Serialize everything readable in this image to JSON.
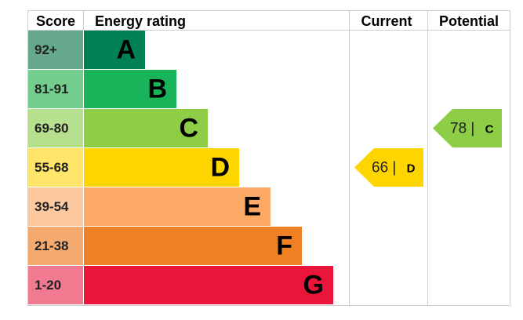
{
  "chart_data": {
    "type": "bar",
    "headers": {
      "score": "Score",
      "rating": "Energy rating",
      "current": "Current",
      "potential": "Potential"
    },
    "bands": [
      {
        "letter": "A",
        "range": "92+",
        "bar_color": "#008054",
        "score_color": "#66a88c"
      },
      {
        "letter": "B",
        "range": "81-91",
        "bar_color": "#19b459",
        "score_color": "#73cd8d"
      },
      {
        "letter": "C",
        "range": "69-80",
        "bar_color": "#8dce46",
        "score_color": "#b7e08e"
      },
      {
        "letter": "D",
        "range": "55-68",
        "bar_color": "#ffd500",
        "score_color": "#ffe66a"
      },
      {
        "letter": "E",
        "range": "39-54",
        "bar_color": "#fcaa65",
        "score_color": "#fdc9a0"
      },
      {
        "letter": "F",
        "range": "21-38",
        "bar_color": "#ef8023",
        "score_color": "#f4a96f"
      },
      {
        "letter": "G",
        "range": "1-20",
        "bar_color": "#e9153b",
        "score_color": "#f07a90"
      }
    ],
    "current": {
      "value": 66,
      "band": "D",
      "color": "#ffd500",
      "label": "66 |",
      "band_label": "D"
    },
    "potential": {
      "value": 78,
      "band": "C",
      "color": "#8dce46",
      "label": "78 |",
      "band_label": "C"
    }
  }
}
